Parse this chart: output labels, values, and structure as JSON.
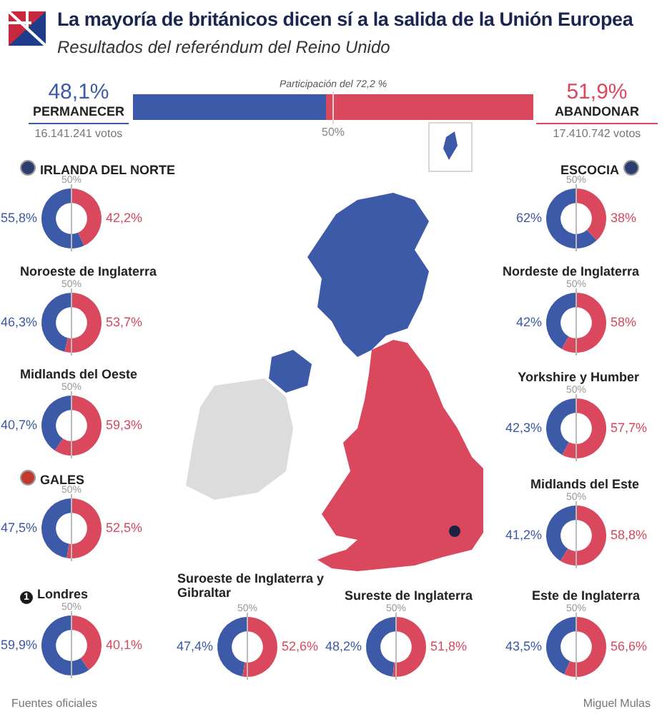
{
  "chart_data": [
    {
      "type": "bar",
      "orientation": "horizontal",
      "stacked": true,
      "title": "La mayoría de británicos dicen sí a la salida de la Unión Europea",
      "subtitle": "Resultados del referéndum del Reino Unido",
      "categories": [
        null
      ],
      "series": [
        {
          "name": "PERMANECER",
          "color": "#3d5aa8",
          "values": [
            48.1
          ],
          "value_labels": [
            "48,1%"
          ]
        },
        {
          "name": "ABANDONAR",
          "color": "#d9485d",
          "values": [
            51.9
          ],
          "value_labels": [
            "51,9%"
          ]
        }
      ],
      "xlim": [
        0,
        100
      ],
      "tick_labels": false,
      "ref_lines": [
        {
          "axis": "x",
          "value": 50,
          "label": "50%"
        }
      ],
      "annotations": [
        "Participación del 72,2 %",
        "16.141.241 votos",
        "17.410.742 votos",
        "Fuentes oficiales",
        "Miguel Mulas"
      ]
    },
    {
      "type": "donut",
      "title": "IRLANDA DEL NORTE",
      "categories": [
        null,
        null
      ],
      "values": [
        55.8,
        42.2
      ],
      "colors": [
        "#3d5aa8",
        "#d9485d"
      ],
      "value_labels": [
        "55,8%",
        "42,2%"
      ],
      "annotations": [
        "50%"
      ]
    },
    {
      "type": "donut",
      "title": "ESCOCIA",
      "categories": [
        null,
        null
      ],
      "values": [
        62,
        38
      ],
      "colors": [
        "#3d5aa8",
        "#d9485d"
      ],
      "value_labels": [
        "62%",
        "38%"
      ],
      "annotations": [
        "50%"
      ]
    },
    {
      "type": "donut",
      "title": "Noroeste de Inglaterra",
      "categories": [
        null,
        null
      ],
      "values": [
        46.3,
        53.7
      ],
      "colors": [
        "#3d5aa8",
        "#d9485d"
      ],
      "value_labels": [
        "46,3%",
        "53,7%"
      ],
      "annotations": [
        "50%"
      ]
    },
    {
      "type": "donut",
      "title": "Nordeste de Inglaterra",
      "categories": [
        null,
        null
      ],
      "values": [
        42,
        58
      ],
      "colors": [
        "#3d5aa8",
        "#d9485d"
      ],
      "value_labels": [
        "42%",
        "58%"
      ],
      "annotations": [
        "50%"
      ]
    },
    {
      "type": "donut",
      "title": "Midlands del Oeste",
      "categories": [
        null,
        null
      ],
      "values": [
        40.7,
        59.3
      ],
      "colors": [
        "#3d5aa8",
        "#d9485d"
      ],
      "value_labels": [
        "40,7%",
        "59,3%"
      ],
      "annotations": [
        "50%"
      ]
    },
    {
      "type": "donut",
      "title": "Yorkshire y Humber",
      "categories": [
        null,
        null
      ],
      "values": [
        42.3,
        57.7
      ],
      "colors": [
        "#3d5aa8",
        "#d9485d"
      ],
      "value_labels": [
        "42,3%",
        "57,7%"
      ],
      "annotations": [
        "50%"
      ]
    },
    {
      "type": "donut",
      "title": "GALES",
      "categories": [
        null,
        null
      ],
      "values": [
        47.5,
        52.5
      ],
      "colors": [
        "#3d5aa8",
        "#d9485d"
      ],
      "value_labels": [
        "47,5%",
        "52,5%"
      ],
      "annotations": [
        "50%"
      ]
    },
    {
      "type": "donut",
      "title": "Midlands del Este",
      "categories": [
        null,
        null
      ],
      "values": [
        41.2,
        58.8
      ],
      "colors": [
        "#3d5aa8",
        "#d9485d"
      ],
      "value_labels": [
        "41,2%",
        "58,8%"
      ],
      "annotations": [
        "50%"
      ]
    },
    {
      "type": "donut",
      "title": "Londres",
      "categories": [
        null,
        null
      ],
      "values": [
        59.9,
        40.1
      ],
      "colors": [
        "#3d5aa8",
        "#d9485d"
      ],
      "value_labels": [
        "59,9%",
        "40,1%"
      ],
      "annotations": [
        "50%",
        "1"
      ]
    },
    {
      "type": "donut",
      "title": "Suroeste de Inglaterra y Gibraltar",
      "categories": [
        null,
        null
      ],
      "values": [
        47.4,
        52.6
      ],
      "colors": [
        "#3d5aa8",
        "#d9485d"
      ],
      "value_labels": [
        "47,4%",
        "52,6%"
      ],
      "annotations": [
        "50%"
      ]
    },
    {
      "type": "donut",
      "title": "Sureste de Inglaterra",
      "categories": [
        null,
        null
      ],
      "values": [
        48.2,
        51.8
      ],
      "colors": [
        "#3d5aa8",
        "#d9485d"
      ],
      "value_labels": [
        "48,2%",
        "51,8%"
      ],
      "annotations": [
        "50%"
      ]
    },
    {
      "type": "donut",
      "title": "Este de Inglaterra",
      "categories": [
        null,
        null
      ],
      "values": [
        43.5,
        56.6
      ],
      "colors": [
        "#3d5aa8",
        "#d9485d"
      ],
      "value_labels": [
        "43,5%",
        "56,6%"
      ],
      "annotations": [
        "50%"
      ]
    }
  ]
}
